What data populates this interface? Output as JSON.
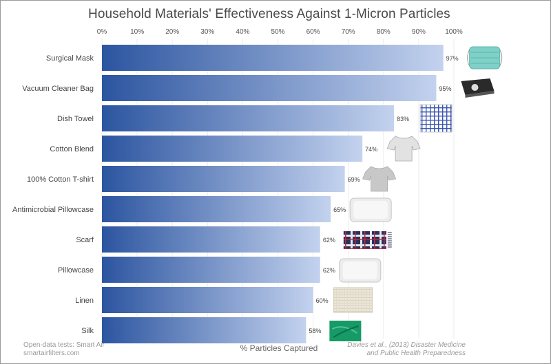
{
  "chart_data": {
    "type": "bar",
    "orientation": "horizontal",
    "title": "Household Materials' Effectiveness Against 1-Micron Particles",
    "xlabel": "% Particles Captured",
    "ylabel": "",
    "xlim": [
      0,
      100
    ],
    "x_ticks": [
      "0%",
      "10%",
      "20%",
      "30%",
      "40%",
      "50%",
      "60%",
      "70%",
      "80%",
      "90%",
      "100%"
    ],
    "grid": true,
    "categories": [
      "Surgical Mask",
      "Vacuum Cleaner Bag",
      "Dish Towel",
      "Cotton Blend",
      "100% Cotton T-shirt",
      "Antimicrobial Pillowcase",
      "Scarf",
      "Pillowcase",
      "Linen",
      "Silk"
    ],
    "values": [
      97,
      95,
      83,
      74,
      69,
      65,
      62,
      62,
      60,
      58
    ],
    "value_labels": [
      "97%",
      "95%",
      "83%",
      "74%",
      "69%",
      "65%",
      "62%",
      "62%",
      "60%",
      "58%"
    ],
    "bar_color_start": "#2c55a0",
    "bar_color_end": "#c3d2ee",
    "icons": [
      "surgical-mask-icon",
      "vacuum-bag-icon",
      "dish-towel-icon",
      "cotton-blend-shirt-icon",
      "cotton-tshirt-icon",
      "pillow-icon",
      "plaid-scarf-icon",
      "pillow-icon",
      "linen-fabric-icon",
      "silk-fabric-icon"
    ]
  },
  "footer": {
    "source_line1": "Open-data tests: Smart Air",
    "source_line2": "smartairfilters.com",
    "citation_line1": "Davies et al., (2013) Disaster Medicine",
    "citation_line2": "and Public Health Preparedness"
  }
}
